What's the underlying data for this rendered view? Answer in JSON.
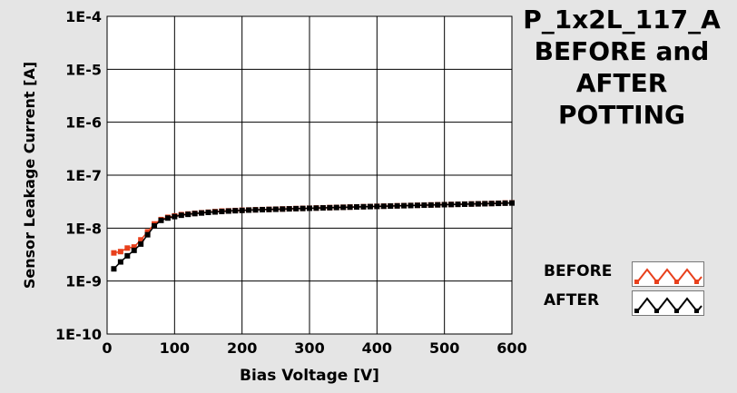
{
  "chart_data": {
    "type": "scatter",
    "title_lines": [
      "P_1x2L_117_A",
      "BEFORE and",
      "AFTER",
      "POTTING"
    ],
    "xlabel": "Bias Voltage [V]",
    "ylabel": "Sensor Leakage Current [A]",
    "xlim": [
      0,
      600
    ],
    "ylim": [
      1e-10,
      0.0001
    ],
    "yscale": "log",
    "x_ticks": [
      0,
      100,
      200,
      300,
      400,
      500,
      600
    ],
    "x_tick_labels": [
      "0",
      "100",
      "200",
      "300",
      "400",
      "500",
      "600"
    ],
    "y_ticks": [
      1e-10,
      1e-09,
      1e-08,
      1e-07,
      1e-06,
      1e-05,
      0.0001
    ],
    "y_tick_labels": [
      "1E-10",
      "1E-9",
      "1E-8",
      "1E-7",
      "1E-6",
      "1E-5",
      "1E-4"
    ],
    "grid": true,
    "legend_position": "bottom-right",
    "series": [
      {
        "name": "BEFORE",
        "color": "#e8401c",
        "x": [
          10,
          20,
          30,
          40,
          50,
          60,
          70,
          80,
          90,
          100,
          110,
          120,
          130,
          140,
          150,
          160,
          170,
          180,
          190,
          200,
          210,
          220,
          230,
          240,
          250,
          260,
          270,
          280,
          290,
          300,
          310,
          320,
          330,
          340,
          350,
          360,
          370,
          380,
          390,
          400,
          410,
          420,
          430,
          440,
          450,
          460,
          470,
          480,
          490,
          500,
          510,
          520,
          530,
          540,
          550,
          560,
          570,
          580,
          590,
          600
        ],
        "y": [
          3.4e-09,
          3.6e-09,
          4.2e-09,
          4.4e-09,
          6e-09,
          8.5e-09,
          1.2e-08,
          1.45e-08,
          1.6e-08,
          1.7e-08,
          1.8e-08,
          1.85e-08,
          1.9e-08,
          1.95e-08,
          2e-08,
          2.05e-08,
          2.1e-08,
          2.12e-08,
          2.15e-08,
          2.18e-08,
          2.2e-08,
          2.22e-08,
          2.24e-08,
          2.26e-08,
          2.28e-08,
          2.3e-08,
          2.32e-08,
          2.34e-08,
          2.36e-08,
          2.38e-08,
          2.4e-08,
          2.42e-08,
          2.44e-08,
          2.46e-08,
          2.48e-08,
          2.5e-08,
          2.52e-08,
          2.54e-08,
          2.56e-08,
          2.58e-08,
          2.6e-08,
          2.62e-08,
          2.64e-08,
          2.66e-08,
          2.68e-08,
          2.7e-08,
          2.72e-08,
          2.74e-08,
          2.76e-08,
          2.78e-08,
          2.8e-08,
          2.82e-08,
          2.84e-08,
          2.86e-08,
          2.88e-08,
          2.9e-08,
          2.92e-08,
          2.95e-08,
          2.98e-08,
          3e-08
        ]
      },
      {
        "name": "AFTER",
        "color": "#000000",
        "x": [
          10,
          20,
          30,
          40,
          50,
          60,
          70,
          80,
          90,
          100,
          110,
          120,
          130,
          140,
          150,
          160,
          170,
          180,
          190,
          200,
          210,
          220,
          230,
          240,
          250,
          260,
          270,
          280,
          290,
          300,
          310,
          320,
          330,
          340,
          350,
          360,
          370,
          380,
          390,
          400,
          410,
          420,
          430,
          440,
          450,
          460,
          470,
          480,
          490,
          500,
          510,
          520,
          530,
          540,
          550,
          560,
          570,
          580,
          590,
          600
        ],
        "y": [
          1.7e-09,
          2.3e-09,
          3e-09,
          3.8e-09,
          5e-09,
          7.5e-09,
          1.1e-08,
          1.4e-08,
          1.55e-08,
          1.65e-08,
          1.75e-08,
          1.82e-08,
          1.88e-08,
          1.93e-08,
          1.98e-08,
          2.02e-08,
          2.06e-08,
          2.1e-08,
          2.13e-08,
          2.16e-08,
          2.19e-08,
          2.21e-08,
          2.23e-08,
          2.25e-08,
          2.27e-08,
          2.29e-08,
          2.31e-08,
          2.33e-08,
          2.35e-08,
          2.37e-08,
          2.39e-08,
          2.41e-08,
          2.43e-08,
          2.45e-08,
          2.47e-08,
          2.49e-08,
          2.51e-08,
          2.53e-08,
          2.55e-08,
          2.57e-08,
          2.59e-08,
          2.61e-08,
          2.63e-08,
          2.65e-08,
          2.67e-08,
          2.69e-08,
          2.71e-08,
          2.73e-08,
          2.75e-08,
          2.77e-08,
          2.79e-08,
          2.81e-08,
          2.83e-08,
          2.85e-08,
          2.87e-08,
          2.89e-08,
          2.91e-08,
          2.93e-08,
          2.96e-08,
          2.98e-08
        ]
      }
    ]
  },
  "legend": {
    "before_label": "BEFORE",
    "after_label": "AFTER"
  }
}
